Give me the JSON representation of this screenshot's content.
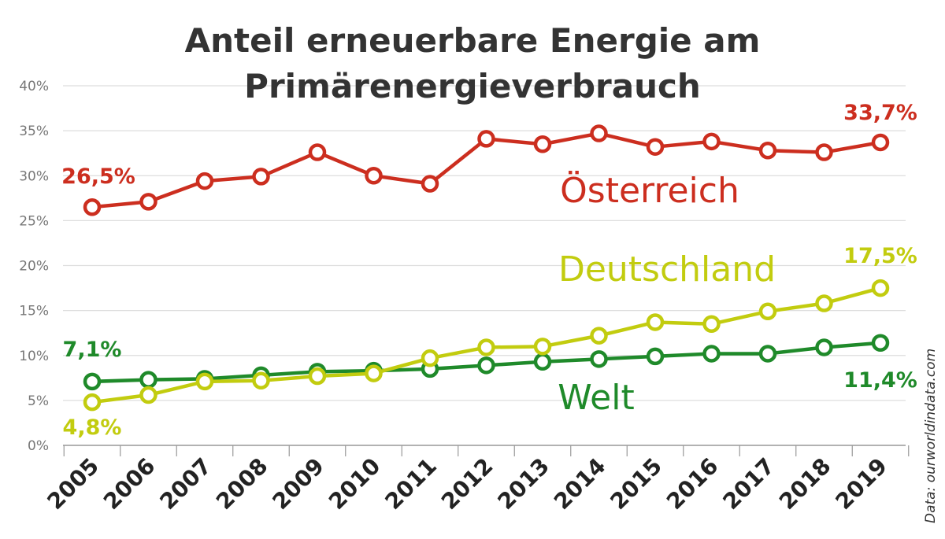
{
  "chart_data": {
    "type": "line",
    "title_lines": [
      "Anteil erneuerbare Energie am",
      "Primärenergieverbrauch"
    ],
    "x": [
      "2005",
      "2006",
      "2007",
      "2008",
      "2009",
      "2010",
      "2011",
      "2012",
      "2013",
      "2014",
      "2015",
      "2016",
      "2017",
      "2018",
      "2019"
    ],
    "ylim": [
      0,
      40
    ],
    "yticks": [
      "0%",
      "5%",
      "10%",
      "15%",
      "20%",
      "25%",
      "30%",
      "35%",
      "40%"
    ],
    "grid": true,
    "series": [
      {
        "name": "Österreich",
        "color": "#cc2e1f",
        "values": [
          26.5,
          27.1,
          29.4,
          29.9,
          32.6,
          30.0,
          29.1,
          34.1,
          33.5,
          34.7,
          33.2,
          33.8,
          32.8,
          32.6,
          33.7
        ],
        "start_label": "26,5%",
        "end_label": "33,7%"
      },
      {
        "name": "Deutschland",
        "color": "#c2cc0f",
        "values": [
          4.8,
          5.6,
          7.1,
          7.2,
          7.7,
          8.0,
          9.7,
          10.9,
          11.0,
          12.2,
          13.7,
          13.5,
          14.9,
          15.8,
          17.5
        ],
        "start_label": "4,8%",
        "end_label": "17,5%"
      },
      {
        "name": "Welt",
        "color": "#1f8a2a",
        "values": [
          7.1,
          7.3,
          7.4,
          7.8,
          8.2,
          8.3,
          8.5,
          8.9,
          9.3,
          9.6,
          9.9,
          10.2,
          10.2,
          10.9,
          11.4
        ],
        "start_label": "7,1%",
        "end_label": "11,4%"
      }
    ],
    "source": "Data: ourworldindata.com"
  }
}
